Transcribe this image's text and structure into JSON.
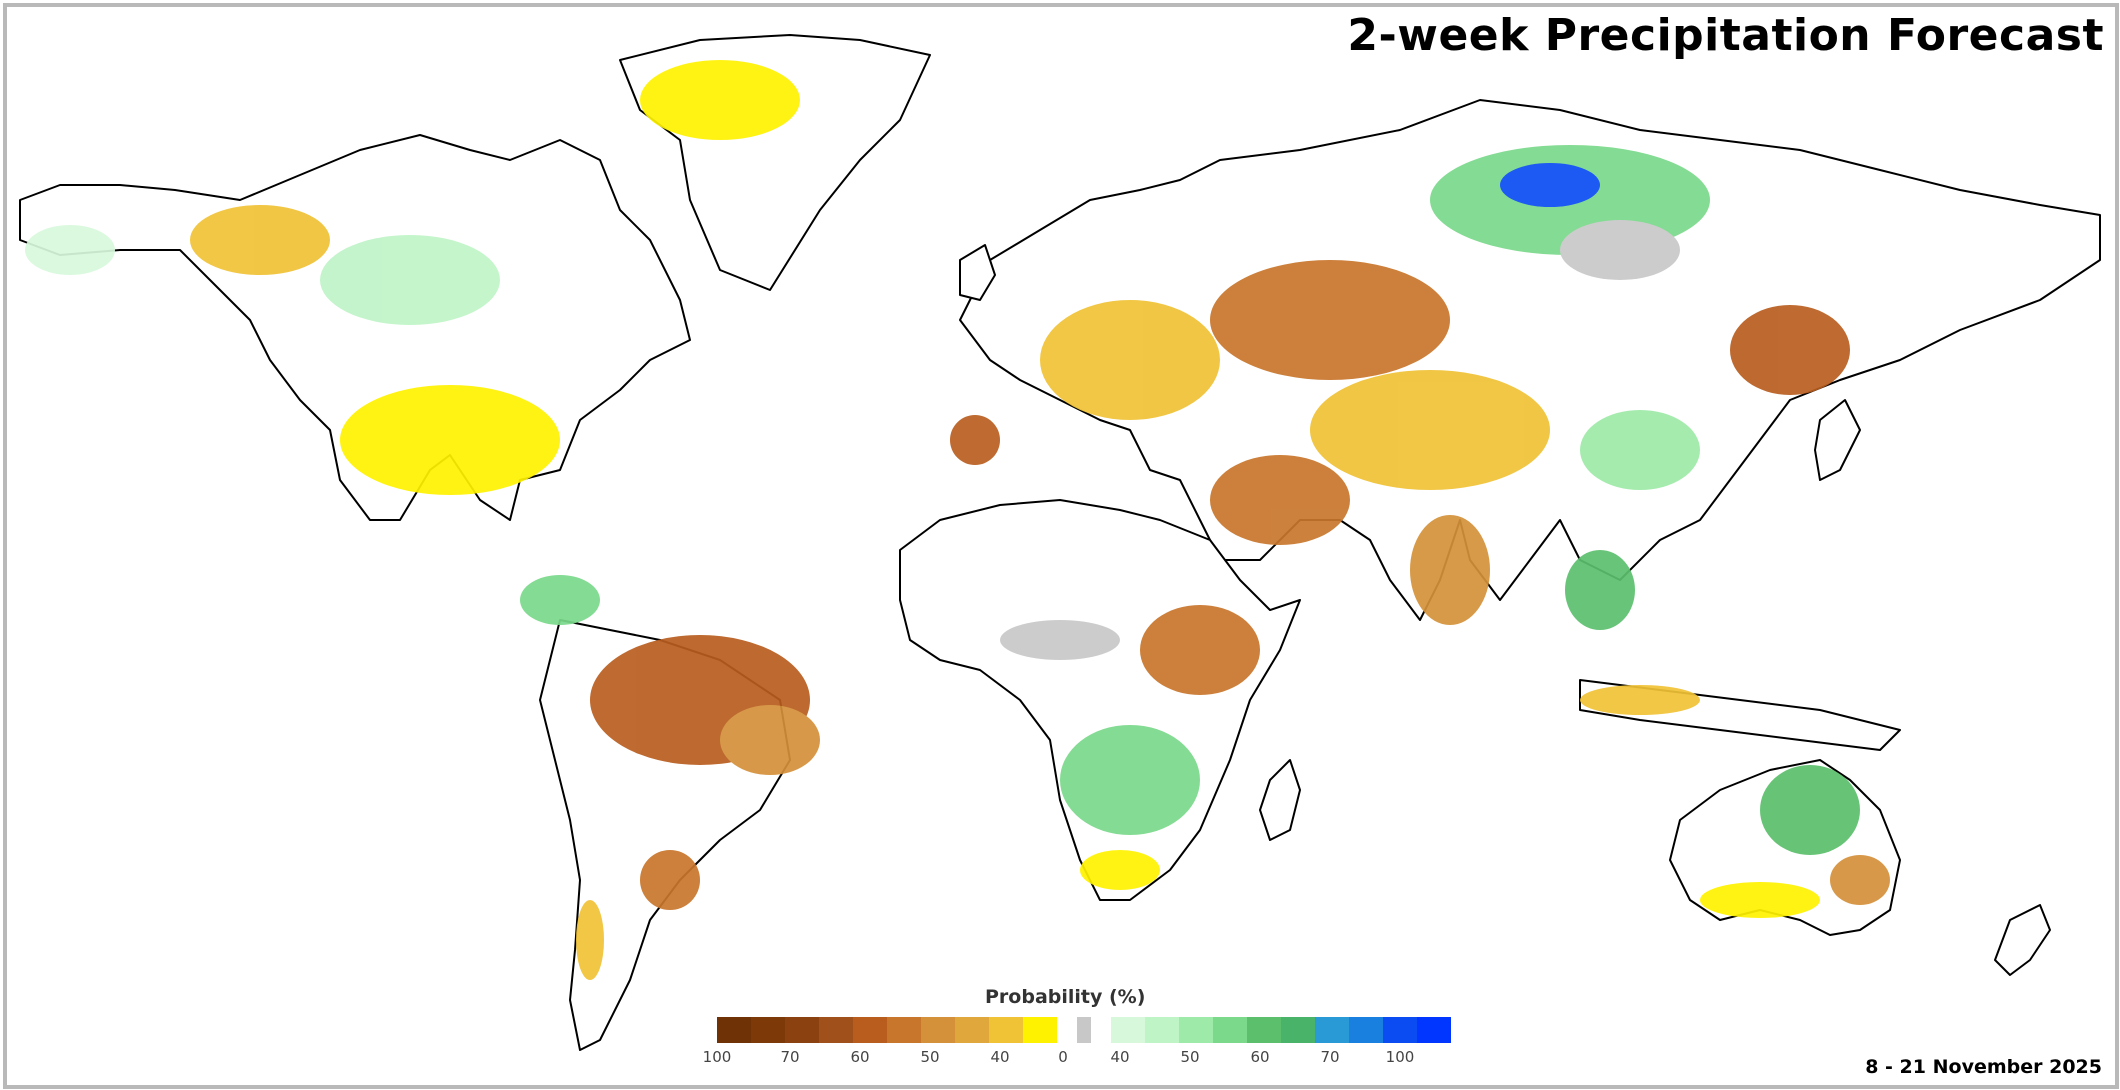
{
  "title": "2-week Precipitation Forecast",
  "date_range": "8 - 21 November 2025",
  "legend": {
    "title": "Probability (%)",
    "dry_colors": [
      "#6e3206",
      "#7d3a08",
      "#8b4210",
      "#a0501a",
      "#b85d1e",
      "#c8762b",
      "#d4913a",
      "#e0a83c",
      "#f0c235",
      "#fff200"
    ],
    "neutral_color": "#c8c8c8",
    "wet_colors": [
      "#d8f8dc",
      "#bff4c7",
      "#9eeaa8",
      "#7ad98a",
      "#5bbf6c",
      "#49b36a",
      "#2a9ad6",
      "#1a80e0",
      "#0a4cf2",
      "#0036ff"
    ],
    "ticks": [
      "100",
      "70",
      "60",
      "50",
      "40",
      "0",
      "40",
      "50",
      "60",
      "70",
      "100"
    ]
  }
}
